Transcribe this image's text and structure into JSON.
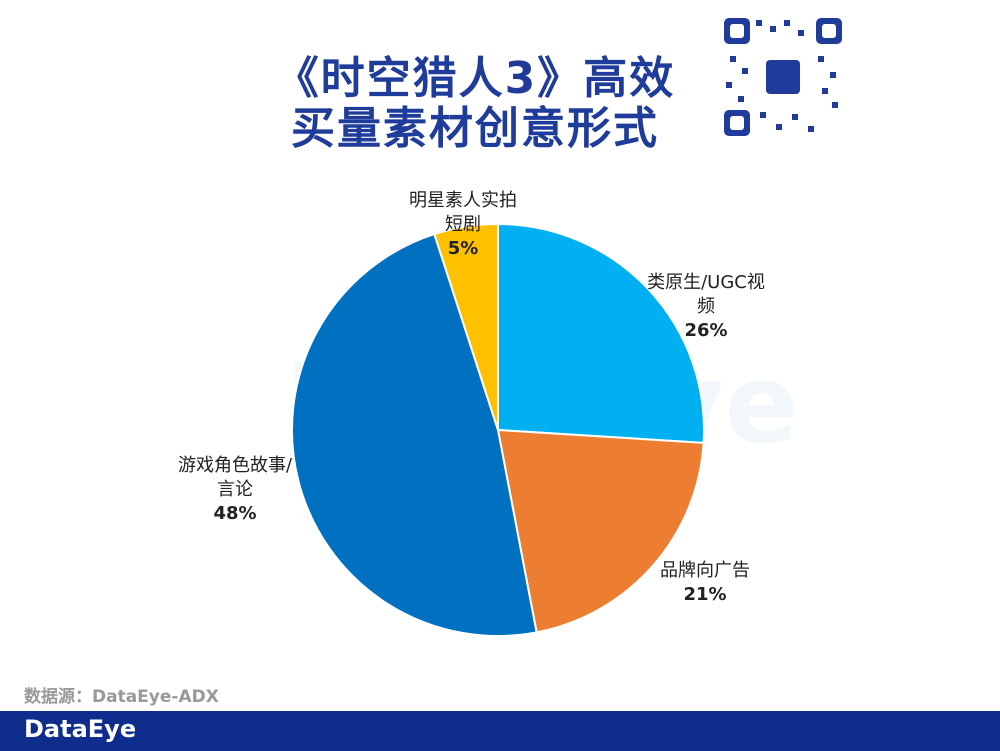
{
  "chart_data": {
    "type": "pie",
    "title": [
      "《时空猎人3》高效",
      "买量素材创意形式"
    ],
    "categories": [
      "类原生/UGC视频",
      "品牌向广告",
      "游戏角色故事/言论",
      "明星素人实拍短剧"
    ],
    "values": [
      26,
      21,
      48,
      5
    ],
    "value_labels": [
      "26%",
      "21%",
      "48%",
      "5%"
    ],
    "colors": [
      "#00b0f0",
      "#ed7d31",
      "#0070c0",
      "#ffc000"
    ],
    "source": "数据源：DataEye-ADX",
    "brand": "DataEye"
  }
}
